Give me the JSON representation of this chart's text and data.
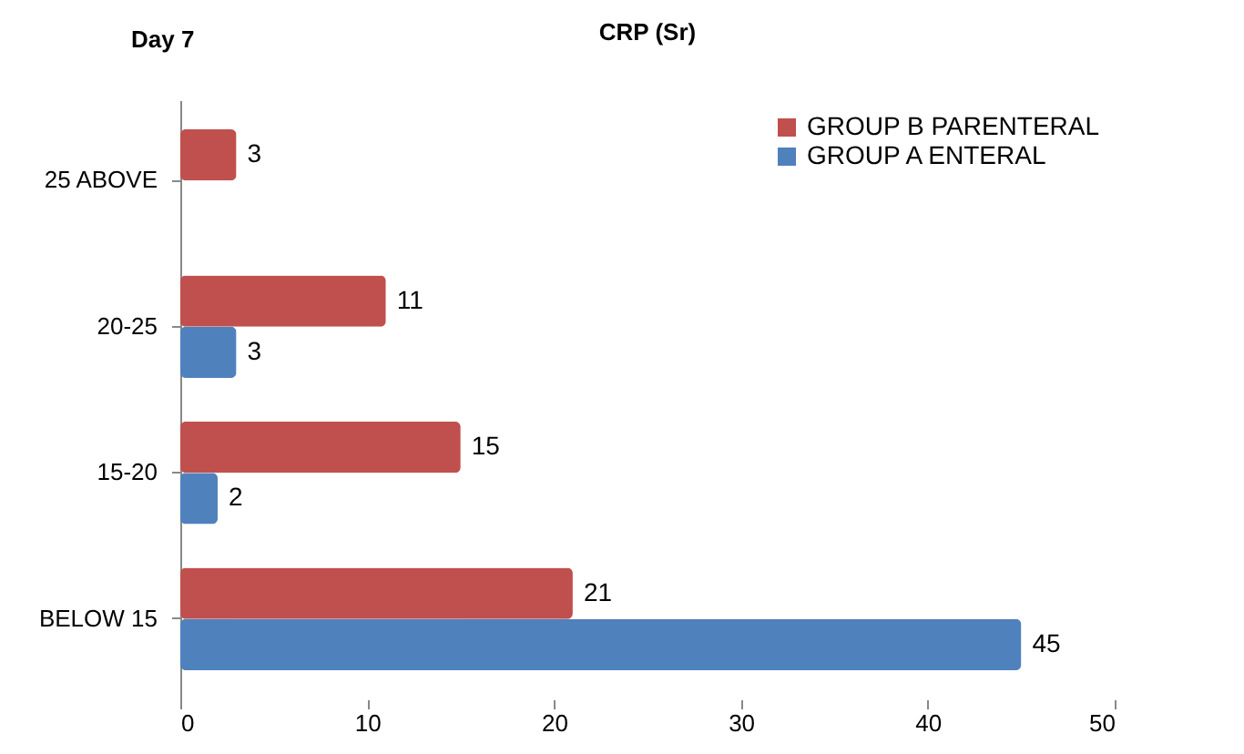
{
  "chart_data": {
    "type": "bar",
    "orientation": "horizontal",
    "title": "CRP (Sr)",
    "annotations": [
      "Day 7"
    ],
    "categories": [
      "25 ABOVE",
      "20-25",
      "15-20",
      "BELOW 15"
    ],
    "series": [
      {
        "name": "GROUP B PARENTERAL",
        "color": "#c0504d",
        "values": [
          3,
          11,
          15,
          21
        ]
      },
      {
        "name": "GROUP A ENTERAL",
        "color": "#4f81bd",
        "values": [
          null,
          3,
          2,
          45
        ]
      }
    ],
    "xlim": [
      0,
      50
    ],
    "xticks": [
      0,
      10,
      20,
      30,
      40,
      50
    ],
    "data_labels": true,
    "legend": "top right"
  }
}
